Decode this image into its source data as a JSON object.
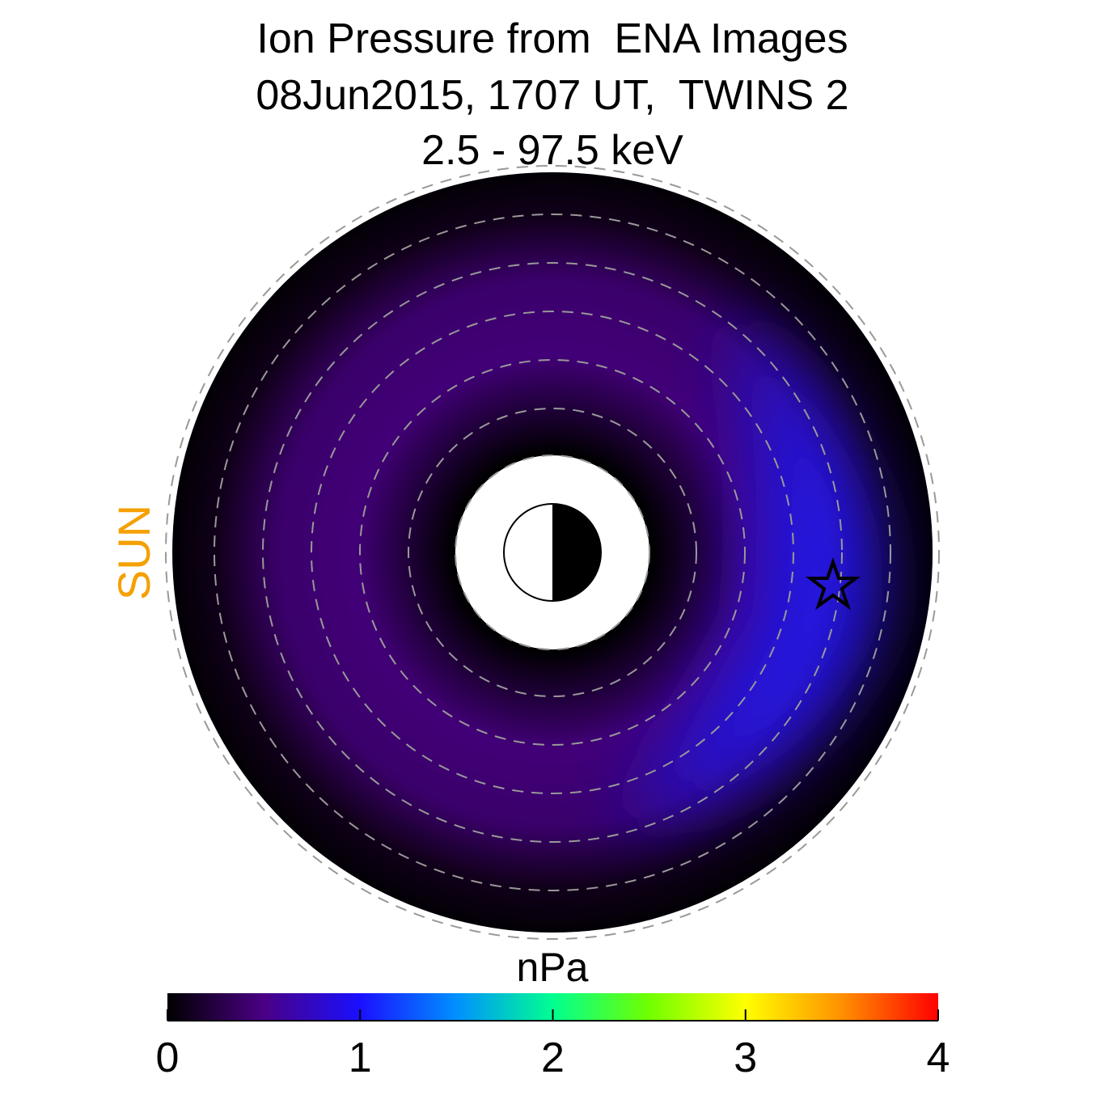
{
  "chart_data": {
    "type": "heatmap",
    "title": "Ion Pressure from  ENA Images",
    "subtitle": [
      "08Jun2015, 1707 UT,  TWINS 2",
      "2.5 - 97.5 keV"
    ],
    "annotations": [
      "SUN"
    ],
    "annotation_color": "#f5a000",
    "colorbar": {
      "label": "nPa",
      "lim": [
        0,
        4
      ],
      "ticks": [
        0,
        1,
        2,
        3,
        4
      ],
      "colors": [
        "#000000",
        "#4a0085",
        "#1a10ff",
        "#0090ff",
        "#00ff90",
        "#70ff00",
        "#ffff00",
        "#ff9000",
        "#ff0000"
      ]
    }
  }
}
